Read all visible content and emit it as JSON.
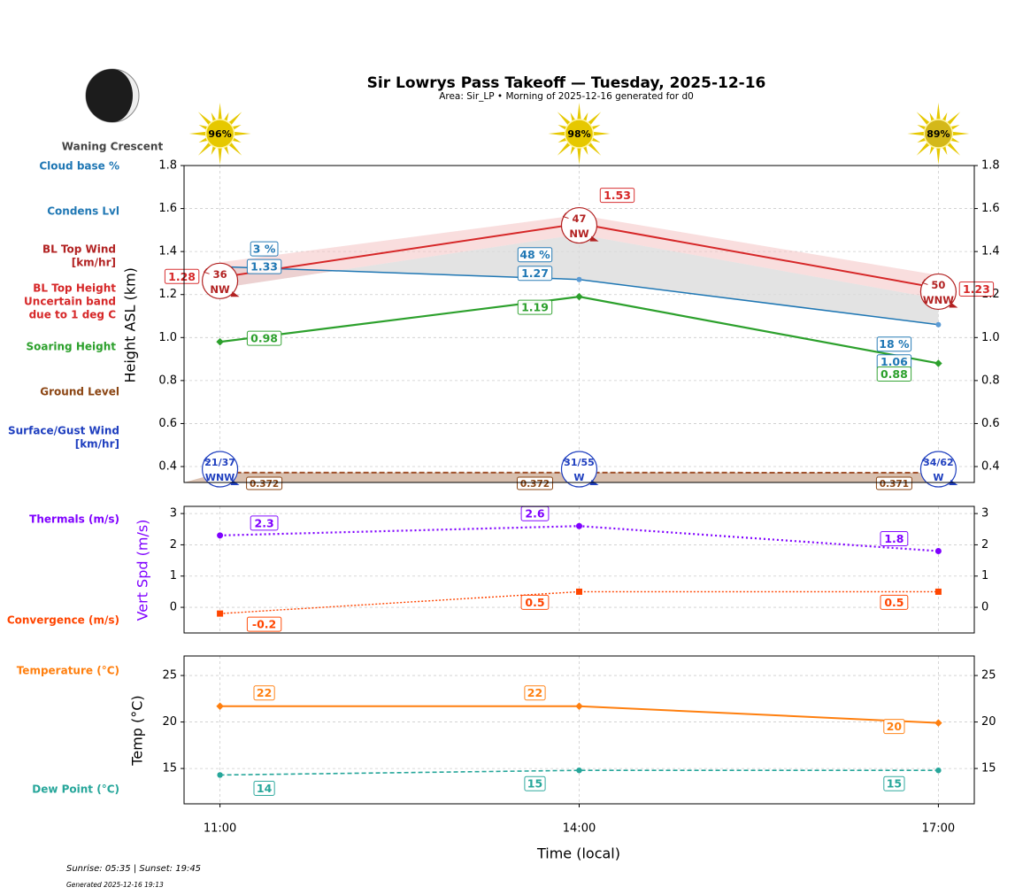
{
  "chart_data": {
    "title": "Sir Lowrys Pass Takeoff — Tuesday, 2025-12-16",
    "subtitle": "Area: Sir_LP • Morning of 2025-12-16 generated for d0",
    "moon_phase": "Waning Crescent",
    "x": [
      "11:00",
      "14:00",
      "17:00"
    ],
    "x_hours": [
      11,
      14,
      17
    ],
    "xlabel": "Time (local)",
    "sun_percent": [
      "96%",
      "98%",
      "89%"
    ],
    "colors": {
      "cloud": "#1f77b4",
      "bl_top": "#d62728",
      "band": "#f4c2c2",
      "soaring": "#2ca02c",
      "ground": "#8b4513",
      "surface_wind": "#1f3fbf",
      "thermals": "#7f00ff",
      "convergence": "#ff4500",
      "temperature": "#ff7f0e",
      "dew": "#26a69a",
      "sun": "#e6c800"
    },
    "panels": [
      {
        "type": "line",
        "ylabel": "Height ASL (km)",
        "ylim": [
          0.326,
          1.8
        ],
        "yticks": [
          "0.4",
          "0.6",
          "0.8",
          "1.0",
          "1.2",
          "1.4",
          "1.6",
          "1.8"
        ],
        "grid": true,
        "row_labels": {
          "cloud_base": "Cloud base %",
          "condens": "Condens Lvl",
          "bl_wind": [
            "BL Top Wind",
            "[km/hr]"
          ],
          "bl_height": [
            "BL Top Height",
            "Uncertain band",
            "due to 1 deg C"
          ],
          "soaring": "Soaring Height",
          "ground": "Ground Level",
          "surface_wind": [
            "Surface/Gust Wind",
            "[km/hr]"
          ]
        },
        "series": {
          "cloud_percent": {
            "values": [
              3,
              48,
              18
            ],
            "labels": [
              "3 %",
              "48 %",
              "18 %"
            ]
          },
          "condens": {
            "values": [
              1.33,
              1.27,
              1.06
            ],
            "labels": [
              "1.33",
              "1.27",
              "1.06"
            ]
          },
          "bl_top": {
            "values": [
              1.28,
              1.53,
              1.23
            ],
            "labels": [
              "1.28",
              "1.53",
              "1.23"
            ],
            "band_low": [
              1.23,
              1.48,
              1.18
            ],
            "band_high": [
              1.35,
              1.57,
              1.29
            ]
          },
          "soaring": {
            "values": [
              0.98,
              1.19,
              0.88
            ],
            "labels": [
              "0.98",
              "1.19",
              "0.88"
            ]
          },
          "ground": {
            "values": [
              0.372,
              0.372,
              0.371
            ],
            "labels": [
              "0.372",
              "0.372",
              "0.371"
            ]
          },
          "bl_wind": {
            "speed": [
              "36",
              "47",
              "50"
            ],
            "dir": [
              "NW",
              "NW",
              "WNW"
            ]
          },
          "surface_wind": {
            "speed": [
              "21/37",
              "31/55",
              "34/62"
            ],
            "dir": [
              "WNW",
              "W",
              "W"
            ]
          }
        }
      },
      {
        "type": "line",
        "ylabel": "Vert Spd (m/s)",
        "ylim": [
          -0.82,
          3.23
        ],
        "yticks": [
          "0",
          "1",
          "2",
          "3"
        ],
        "grid": true,
        "row_labels": {
          "thermals": "Thermals (m/s)",
          "convergence": "Convergence (m/s)"
        },
        "series": {
          "thermals": {
            "values": [
              2.3,
              2.6,
              1.8
            ],
            "labels": [
              "2.3",
              "2.6",
              "1.8"
            ]
          },
          "convergence": {
            "values": [
              -0.2,
              0.5,
              0.5
            ],
            "labels": [
              "-0.2",
              "0.5",
              "0.5"
            ]
          }
        }
      },
      {
        "type": "line",
        "ylabel": "Temp (°C)",
        "ylim": [
          11.2,
          27.1
        ],
        "yticks": [
          "15",
          "20",
          "25"
        ],
        "grid": true,
        "row_labels": {
          "temperature": "Temperature (°C)",
          "dew": "Dew Point (°C)"
        },
        "series": {
          "temperature": {
            "values": [
              21.7,
              21.7,
              19.9
            ],
            "labels": [
              "22",
              "22",
              "20"
            ]
          },
          "dew": {
            "values": [
              14.3,
              14.8,
              14.8
            ],
            "labels": [
              "14",
              "15",
              "15"
            ]
          }
        }
      }
    ]
  },
  "footer": {
    "sun_times": "Sunrise: 05:35 | Sunset: 19:45",
    "generated": "Generated 2025-12-16 19:13"
  }
}
